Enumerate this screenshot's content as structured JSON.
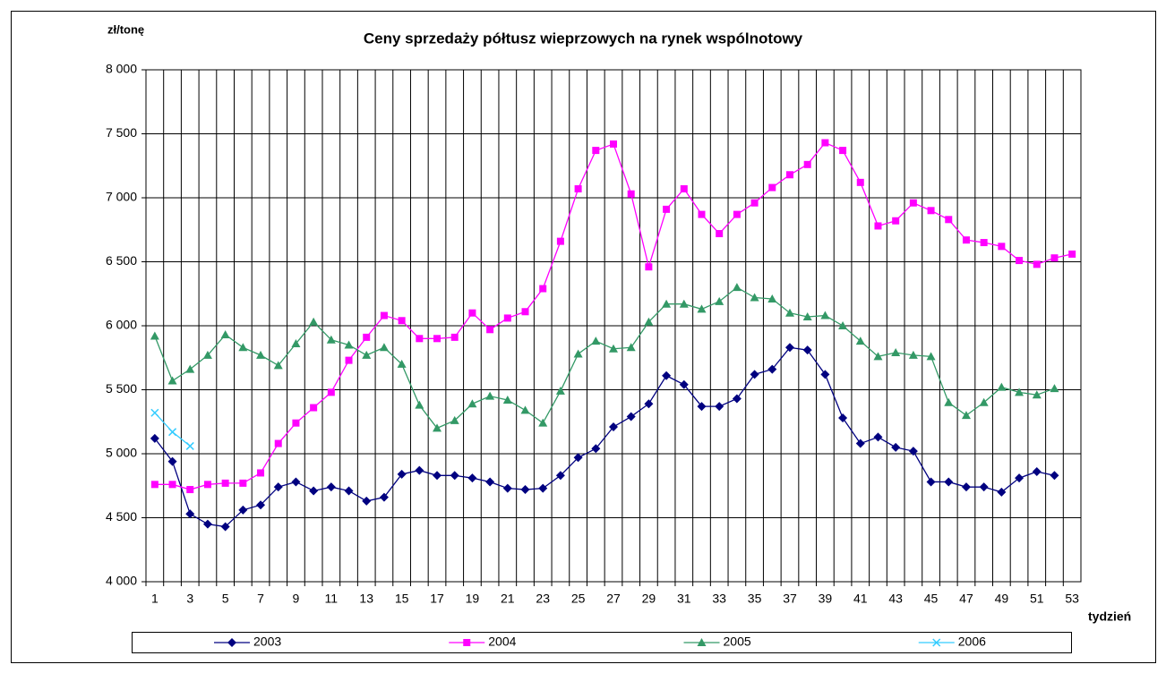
{
  "chart_data": {
    "type": "line",
    "title": "Ceny sprzedaży półtusz wieprzowych na rynek wspólnotowy",
    "y_label": "zł/tonę",
    "x_label": "tydzień",
    "categories": [
      "1",
      null,
      "3",
      null,
      "5",
      null,
      "7",
      null,
      "9",
      null,
      "11",
      null,
      "13",
      null,
      "15",
      null,
      "17",
      null,
      "19",
      null,
      "21",
      null,
      "23",
      null,
      "25",
      null,
      "27",
      null,
      "29",
      null,
      "31",
      null,
      "33",
      null,
      "35",
      null,
      "37",
      null,
      "39",
      null,
      "41",
      null,
      "43",
      null,
      "45",
      null,
      "47",
      null,
      "49",
      null,
      "51",
      null,
      "53"
    ],
    "ylim": [
      4000,
      8000
    ],
    "yticks": [
      {
        "value": 4000,
        "label": "4 000"
      },
      {
        "value": 4500,
        "label": "4 500"
      },
      {
        "value": 5000,
        "label": "5 000"
      },
      {
        "value": 5500,
        "label": "5 500"
      },
      {
        "value": 6000,
        "label": "6 000"
      },
      {
        "value": 6500,
        "label": "6 500"
      },
      {
        "value": 7000,
        "label": "7 000"
      },
      {
        "value": 7500,
        "label": "7 500"
      },
      {
        "value": 8000,
        "label": "8 000"
      }
    ],
    "grid": true,
    "legend": "bottom",
    "series": [
      {
        "name": "2003",
        "color": "#000080",
        "marker": "diamond",
        "values": [
          5120,
          4940,
          4530,
          4450,
          4430,
          4560,
          4600,
          4740,
          4780,
          4710,
          4740,
          4710,
          4630,
          4660,
          4840,
          4870,
          4830,
          4830,
          4810,
          4780,
          4730,
          4720,
          4730,
          4830,
          4970,
          5040,
          5210,
          5290,
          5390,
          5610,
          5540,
          5370,
          5370,
          5430,
          5620,
          5660,
          5830,
          5810,
          5620,
          5280,
          5080,
          5130,
          5050,
          5020,
          4780,
          4780,
          4740,
          4740,
          4700,
          4810,
          4860,
          4830,
          null
        ]
      },
      {
        "name": "2004",
        "color": "#ff00ff",
        "marker": "square",
        "values": [
          4760,
          4760,
          4720,
          4760,
          4770,
          4770,
          4850,
          5080,
          5240,
          5360,
          5480,
          5730,
          5910,
          6080,
          6040,
          5900,
          5900,
          5910,
          6100,
          5970,
          6060,
          6110,
          6290,
          6660,
          7070,
          7370,
          7420,
          7030,
          6460,
          6910,
          7070,
          6870,
          6720,
          6870,
          6960,
          7080,
          7180,
          7260,
          7430,
          7370,
          7120,
          6780,
          6820,
          6960,
          6900,
          6830,
          6670,
          6650,
          6620,
          6510,
          6480,
          6530,
          6560
        ]
      },
      {
        "name": "2005",
        "color": "#339966",
        "marker": "triangle",
        "values": [
          5920,
          5570,
          5660,
          5770,
          5930,
          5830,
          5770,
          5690,
          5860,
          6030,
          5890,
          5850,
          5770,
          5830,
          5700,
          5380,
          5200,
          5260,
          5390,
          5450,
          5420,
          5340,
          5240,
          5490,
          5780,
          5880,
          5820,
          5830,
          6030,
          6170,
          6170,
          6130,
          6190,
          6300,
          6220,
          6210,
          6100,
          6070,
          6080,
          6000,
          5880,
          5760,
          5790,
          5770,
          5760,
          5400,
          5300,
          5400,
          5520,
          5480,
          5460,
          5510,
          null
        ]
      },
      {
        "name": "2006",
        "color": "#33ccff",
        "marker": "x",
        "values": [
          5320,
          5170,
          5060,
          null,
          null,
          null,
          null,
          null,
          null,
          null,
          null,
          null,
          null,
          null,
          null,
          null,
          null,
          null,
          null,
          null,
          null,
          null,
          null,
          null,
          null,
          null,
          null,
          null,
          null,
          null,
          null,
          null,
          null,
          null,
          null,
          null,
          null,
          null,
          null,
          null,
          null,
          null,
          null,
          null,
          null,
          null,
          null,
          null,
          null,
          null,
          null,
          null,
          null
        ]
      }
    ]
  }
}
